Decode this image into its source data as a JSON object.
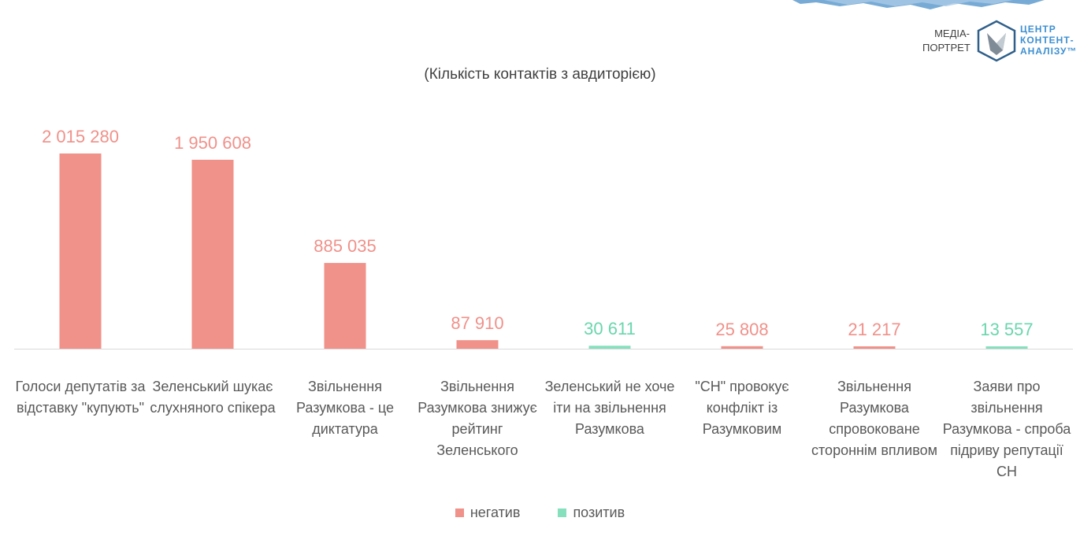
{
  "header": {
    "subtitle": "(Кількість контактів з авдиторією)",
    "brand_media_line1": "МЕДІА-",
    "brand_media_line2": "ПОРТРЕТ",
    "brand_name_line1": "ЦЕНТР",
    "brand_name_line2": "КОНТЕНТ-",
    "brand_name_line3": "АНАЛІЗУ™"
  },
  "colors": {
    "negative": "#f0918a",
    "positive": "#86e0be",
    "negative_label": "#f0918a",
    "positive_label": "#6ad6ae",
    "baseline": "#d9d9d9",
    "brand": "#3d8fd1"
  },
  "legend": {
    "negative": "негатив",
    "positive": "позитив"
  },
  "chart_data": {
    "type": "bar",
    "title": "",
    "subtitle": "(Кількість контактів з авдиторією)",
    "categories": [
      [
        "Голоси депутатів за",
        "відставку \"купують\""
      ],
      [
        "Зеленський шукає",
        "слухняного спікера"
      ],
      [
        "Звільнення",
        "Разумкова - це",
        "диктатура"
      ],
      [
        "Звільнення",
        "Разумкова знижує",
        "рейтинг",
        "Зеленського"
      ],
      [
        "Зеленський не хоче",
        "іти на звільнення",
        "Разумкова"
      ],
      [
        "\"СН\" провокує",
        "конфлікт із",
        "Разумковим"
      ],
      [
        "Звільнення",
        "Разумкова",
        "спровоковане",
        "стороннім впливом"
      ],
      [
        "Заяви про",
        "звільнення",
        "Разумкова - спроба",
        "підриву репутації",
        "СН"
      ]
    ],
    "values": [
      2015280,
      1950608,
      885035,
      87910,
      30611,
      25808,
      21217,
      13557
    ],
    "value_labels": [
      "2 015 280",
      "1 950 608",
      "885 035",
      "87 910",
      "30 611",
      "25 808",
      "21 217",
      "13 557"
    ],
    "tone": [
      "негатив",
      "негатив",
      "негатив",
      "негатив",
      "позитив",
      "негатив",
      "негатив",
      "позитив"
    ],
    "ylim": [
      0,
      2015280
    ],
    "grid": false,
    "legend_position": "bottom",
    "xlabel": "",
    "ylabel": ""
  }
}
